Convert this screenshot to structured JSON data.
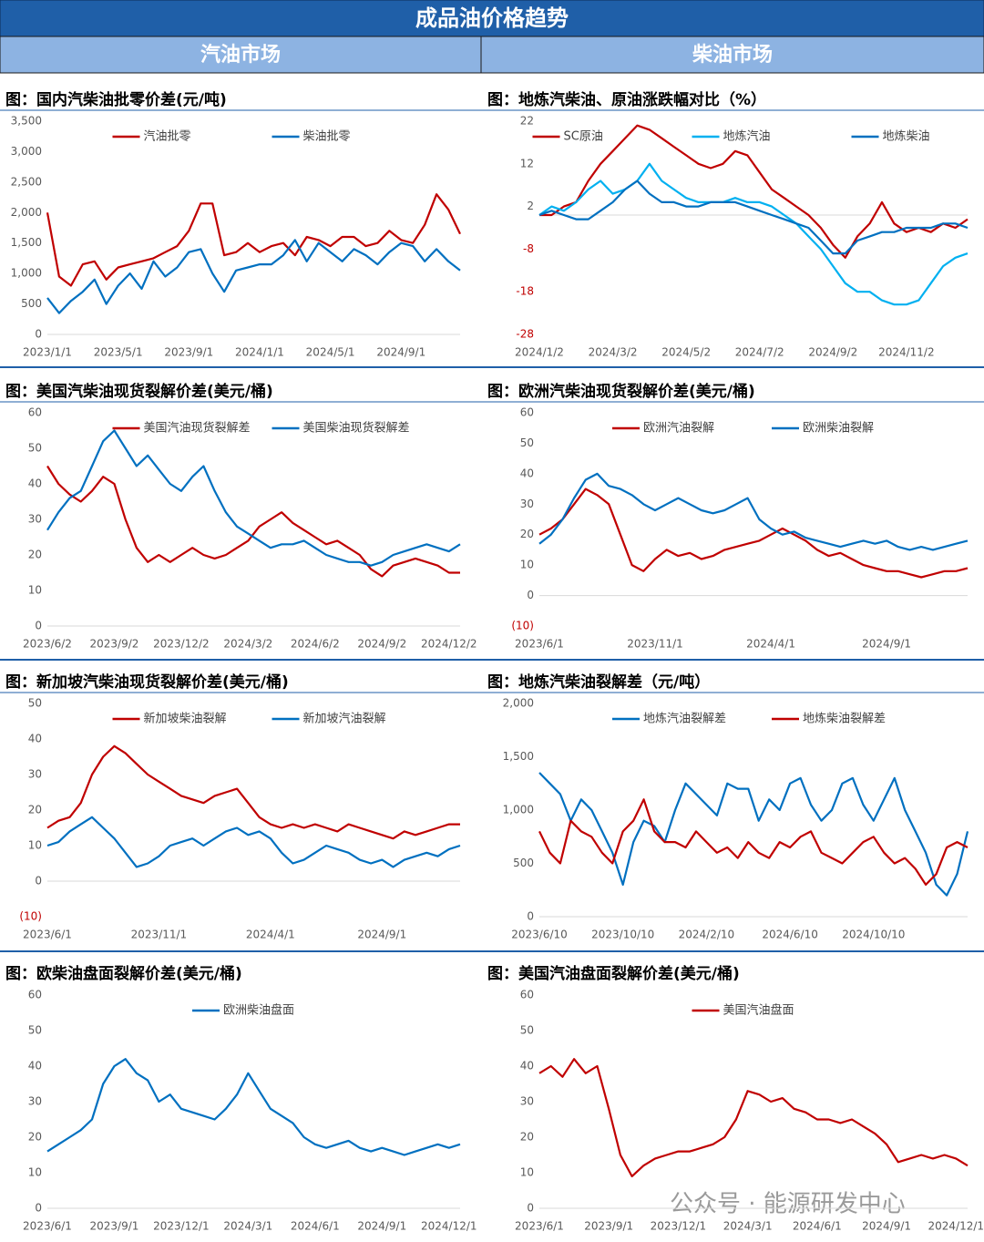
{
  "header": {
    "title": "成品油价格趋势",
    "left_tab": "汽油市场",
    "right_tab": "柴油市场"
  },
  "watermark": "公众号 · 能源研发中心",
  "chart_data": [
    {
      "type": "line",
      "title": "图：国内汽柴油批零价差(元/吨)",
      "categories": [
        "2023/1/1",
        null,
        null,
        null,
        null,
        null,
        "2023/5/1",
        null,
        null,
        null,
        null,
        null,
        "2023/9/1",
        null,
        null,
        null,
        null,
        null,
        "2024/1/1",
        null,
        null,
        null,
        null,
        null,
        "2024/5/1",
        null,
        null,
        null,
        null,
        null,
        "2024/9/1",
        null,
        null,
        null,
        null,
        null
      ],
      "series": [
        {
          "name": "汽油批零",
          "color": "#c00000",
          "values": [
            2000,
            950,
            800,
            1150,
            1200,
            900,
            1100,
            1150,
            1200,
            1250,
            1350,
            1450,
            1700,
            2150,
            2150,
            1300,
            1350,
            1500,
            1350,
            1450,
            1500,
            1300,
            1600,
            1550,
            1450,
            1600,
            1600,
            1450,
            1500,
            1700,
            1550,
            1500,
            1800,
            2300,
            2050,
            1650
          ]
        },
        {
          "name": "柴油批零",
          "color": "#0070c0",
          "values": [
            600,
            350,
            550,
            700,
            900,
            500,
            800,
            1000,
            750,
            1200,
            950,
            1100,
            1350,
            1400,
            1000,
            700,
            1050,
            1100,
            1150,
            1150,
            1300,
            1550,
            1200,
            1500,
            1350,
            1200,
            1400,
            1300,
            1150,
            1350,
            1500,
            1450,
            1200,
            1400,
            1200,
            1050
          ]
        }
      ],
      "ylim": [
        0,
        3500
      ],
      "yticks": [
        0,
        500,
        {
          "value": 1000,
          "label": "1,000"
        },
        {
          "value": 1500,
          "label": "1,500"
        },
        {
          "value": 2000,
          "label": "2,000"
        },
        {
          "value": 2500,
          "label": "2,500"
        },
        {
          "value": 3000,
          "label": "3,000"
        },
        {
          "value": 3500,
          "label": "3,500"
        }
      ],
      "legend": "top"
    },
    {
      "type": "line",
      "title": "图：地炼汽柴油、原油涨跌幅对比（%）",
      "categories": [
        "2024/1/2",
        null,
        null,
        null,
        null,
        null,
        "2024/3/2",
        null,
        null,
        null,
        null,
        null,
        "2024/5/2",
        null,
        null,
        null,
        null,
        null,
        "2024/7/2",
        null,
        null,
        null,
        null,
        null,
        "2024/9/2",
        null,
        null,
        null,
        null,
        null,
        "2024/11/2",
        null,
        null,
        null,
        null,
        null
      ],
      "series": [
        {
          "name": "SC原油",
          "color": "#c00000",
          "values": [
            0,
            0,
            2,
            3,
            8,
            12,
            15,
            18,
            21,
            20,
            18,
            16,
            14,
            12,
            11,
            12,
            15,
            14,
            10,
            6,
            4,
            2,
            0,
            -3,
            -7,
            -10,
            -5,
            -2,
            3,
            -2,
            -4,
            -3,
            -4,
            -2,
            -3,
            -1
          ]
        },
        {
          "name": "地炼汽油",
          "color": "#00b0f0",
          "values": [
            0,
            2,
            1,
            3,
            6,
            8,
            5,
            6,
            8,
            12,
            8,
            6,
            4,
            3,
            3,
            3,
            4,
            3,
            3,
            2,
            0,
            -2,
            -5,
            -8,
            -12,
            -16,
            -18,
            -18,
            -20,
            -21,
            -21,
            -20,
            -16,
            -12,
            -10,
            -9
          ]
        },
        {
          "name": "地炼柴油",
          "color": "#0070c0",
          "values": [
            0,
            1,
            0,
            -1,
            -1,
            1,
            3,
            6,
            8,
            5,
            3,
            3,
            2,
            2,
            3,
            3,
            3,
            2,
            1,
            0,
            -1,
            -2,
            -3,
            -6,
            -9,
            -9,
            -6,
            -5,
            -4,
            -4,
            -3,
            -3,
            -3,
            -2,
            -2,
            -3
          ]
        }
      ],
      "ylim": [
        -28,
        22
      ],
      "yticks": [
        -28,
        -18,
        -8,
        2,
        12,
        22
      ],
      "legend": "top"
    },
    {
      "type": "line",
      "title": "图：美国汽柴油现货裂解价差(美元/桶)",
      "categories": [
        "2023/6/2",
        null,
        null,
        null,
        null,
        null,
        "2023/9/2",
        null,
        null,
        null,
        null,
        null,
        "2023/12/2",
        null,
        null,
        null,
        null,
        null,
        "2024/3/2",
        null,
        null,
        null,
        null,
        null,
        "2024/6/2",
        null,
        null,
        null,
        null,
        null,
        "2024/9/2",
        null,
        null,
        null,
        null,
        null,
        "2024/12/2",
        null
      ],
      "series": [
        {
          "name": "美国汽油现货裂解差",
          "color": "#c00000",
          "values": [
            45,
            40,
            37,
            35,
            38,
            42,
            40,
            30,
            22,
            18,
            20,
            18,
            20,
            22,
            20,
            19,
            20,
            22,
            24,
            28,
            30,
            32,
            29,
            27,
            25,
            23,
            24,
            22,
            20,
            16,
            14,
            17,
            18,
            19,
            18,
            17,
            15,
            15
          ]
        },
        {
          "name": "美国柴油现货裂解差",
          "color": "#0070c0",
          "values": [
            27,
            32,
            36,
            38,
            45,
            52,
            55,
            50,
            45,
            48,
            44,
            40,
            38,
            42,
            45,
            38,
            32,
            28,
            26,
            24,
            22,
            23,
            23,
            24,
            22,
            20,
            19,
            18,
            18,
            17,
            18,
            20,
            21,
            22,
            23,
            22,
            21,
            23
          ]
        }
      ],
      "ylim": [
        0,
        60
      ],
      "yticks": [
        0,
        10,
        20,
        30,
        40,
        50,
        60
      ],
      "legend": "top"
    },
    {
      "type": "line",
      "title": "图：欧洲汽柴油现货裂解价差(美元/桶)",
      "categories": [
        "2023/6/1",
        null,
        null,
        null,
        null,
        null,
        null,
        null,
        null,
        null,
        "2023/11/1",
        null,
        null,
        null,
        null,
        null,
        null,
        null,
        null,
        null,
        "2024/4/1",
        null,
        null,
        null,
        null,
        null,
        null,
        null,
        null,
        null,
        "2024/9/1",
        null,
        null,
        null,
        null,
        null,
        null,
        null
      ],
      "series": [
        {
          "name": "欧洲汽油裂解",
          "color": "#c00000",
          "values": [
            20,
            22,
            25,
            30,
            35,
            33,
            30,
            20,
            10,
            8,
            12,
            15,
            13,
            14,
            12,
            13,
            15,
            16,
            17,
            18,
            20,
            22,
            20,
            18,
            15,
            13,
            14,
            12,
            10,
            9,
            8,
            8,
            7,
            6,
            7,
            8,
            8,
            9
          ]
        },
        {
          "name": "欧洲柴油裂解",
          "color": "#0070c0",
          "values": [
            17,
            20,
            25,
            32,
            38,
            40,
            36,
            35,
            33,
            30,
            28,
            30,
            32,
            30,
            28,
            27,
            28,
            30,
            32,
            25,
            22,
            20,
            21,
            19,
            18,
            17,
            16,
            17,
            18,
            17,
            18,
            16,
            15,
            16,
            15,
            16,
            17,
            18
          ]
        }
      ],
      "ylim": [
        -10,
        60
      ],
      "yticks": [
        {
          "value": -10,
          "label": "(10)"
        },
        0,
        10,
        20,
        30,
        40,
        50,
        60
      ],
      "legend": "top"
    },
    {
      "type": "line",
      "title": "图：新加坡汽柴油现货裂解价差(美元/桶)",
      "categories": [
        "2023/6/1",
        null,
        null,
        null,
        null,
        null,
        null,
        null,
        null,
        null,
        "2023/11/1",
        null,
        null,
        null,
        null,
        null,
        null,
        null,
        null,
        null,
        "2024/4/1",
        null,
        null,
        null,
        null,
        null,
        null,
        null,
        null,
        null,
        "2024/9/1",
        null,
        null,
        null,
        null,
        null,
        null,
        null
      ],
      "series": [
        {
          "name": "新加坡柴油裂解",
          "color": "#c00000",
          "values": [
            15,
            17,
            18,
            22,
            30,
            35,
            38,
            36,
            33,
            30,
            28,
            26,
            24,
            23,
            22,
            24,
            25,
            26,
            22,
            18,
            16,
            15,
            16,
            15,
            16,
            15,
            14,
            16,
            15,
            14,
            13,
            12,
            14,
            13,
            14,
            15,
            16,
            16
          ]
        },
        {
          "name": "新加坡汽油裂解",
          "color": "#0070c0",
          "values": [
            10,
            11,
            14,
            16,
            18,
            15,
            12,
            8,
            4,
            5,
            7,
            10,
            11,
            12,
            10,
            12,
            14,
            15,
            13,
            14,
            12,
            8,
            5,
            6,
            8,
            10,
            9,
            8,
            6,
            5,
            6,
            4,
            6,
            7,
            8,
            7,
            9,
            10
          ]
        }
      ],
      "ylim": [
        -10,
        50
      ],
      "yticks": [
        {
          "value": -10,
          "label": "(10)"
        },
        0,
        10,
        20,
        30,
        40,
        50
      ],
      "legend": "top"
    },
    {
      "type": "line",
      "title": "图：地炼汽柴油裂解差（元/吨）",
      "categories": [
        "2023/6/10",
        null,
        null,
        null,
        null,
        null,
        null,
        null,
        "2023/10/10",
        null,
        null,
        null,
        null,
        null,
        null,
        null,
        "2024/2/10",
        null,
        null,
        null,
        null,
        null,
        null,
        null,
        "2024/6/10",
        null,
        null,
        null,
        null,
        null,
        null,
        null,
        "2024/10/10",
        null,
        null,
        null,
        null,
        null,
        null,
        null,
        null,
        null
      ],
      "series": [
        {
          "name": "地炼汽油裂解差",
          "color": "#0070c0",
          "values": [
            1350,
            1250,
            1150,
            900,
            1100,
            1000,
            800,
            600,
            300,
            700,
            900,
            850,
            700,
            1000,
            1250,
            1150,
            1050,
            950,
            1250,
            1200,
            1200,
            900,
            1100,
            1000,
            1250,
            1300,
            1050,
            900,
            1000,
            1250,
            1300,
            1050,
            900,
            1100,
            1300,
            1000,
            800,
            600,
            300,
            200,
            400,
            800
          ]
        },
        {
          "name": "地炼柴油裂解差",
          "color": "#c00000",
          "values": [
            800,
            600,
            500,
            900,
            800,
            750,
            600,
            500,
            800,
            900,
            1100,
            800,
            700,
            700,
            650,
            800,
            700,
            600,
            650,
            550,
            700,
            600,
            550,
            700,
            650,
            750,
            800,
            600,
            550,
            500,
            600,
            700,
            750,
            600,
            500,
            550,
            450,
            300,
            400,
            650,
            700,
            650
          ]
        }
      ],
      "ylim": [
        0,
        2000
      ],
      "yticks": [
        0,
        500,
        {
          "value": 1000,
          "label": "1,000"
        },
        {
          "value": 1500,
          "label": "1,500"
        },
        {
          "value": 2000,
          "label": "2,000"
        }
      ],
      "legend": "top"
    },
    {
      "type": "line",
      "title": "图：欧柴油盘面裂解价差(美元/桶)",
      "categories": [
        "2023/6/1",
        null,
        null,
        null,
        null,
        null,
        "2023/9/1",
        null,
        null,
        null,
        null,
        null,
        "2023/12/1",
        null,
        null,
        null,
        null,
        null,
        "2024/3/1",
        null,
        null,
        null,
        null,
        null,
        "2024/6/1",
        null,
        null,
        null,
        null,
        null,
        "2024/9/1",
        null,
        null,
        null,
        null,
        null,
        "2024/12/1",
        null
      ],
      "series": [
        {
          "name": "欧洲柴油盘面",
          "color": "#0070c0",
          "values": [
            16,
            18,
            20,
            22,
            25,
            35,
            40,
            42,
            38,
            36,
            30,
            32,
            28,
            27,
            26,
            25,
            28,
            32,
            38,
            33,
            28,
            26,
            24,
            20,
            18,
            17,
            18,
            19,
            17,
            16,
            17,
            16,
            15,
            16,
            17,
            18,
            17,
            18
          ]
        }
      ],
      "ylim": [
        0,
        60
      ],
      "yticks": [
        0,
        10,
        20,
        30,
        40,
        50,
        60
      ],
      "legend": "top"
    },
    {
      "type": "line",
      "title": "图：美国汽油盘面裂解价差(美元/桶)",
      "categories": [
        "2023/6/1",
        null,
        null,
        null,
        null,
        null,
        "2023/9/1",
        null,
        null,
        null,
        null,
        null,
        "2023/12/1",
        null,
        null,
        null,
        null,
        null,
        "2024/3/1",
        null,
        null,
        null,
        null,
        null,
        "2024/6/1",
        null,
        null,
        null,
        null,
        null,
        "2024/9/1",
        null,
        null,
        null,
        null,
        null,
        "2024/12/1",
        null
      ],
      "series": [
        {
          "name": "美国汽油盘面",
          "color": "#c00000",
          "values": [
            38,
            40,
            37,
            42,
            38,
            40,
            28,
            15,
            9,
            12,
            14,
            15,
            16,
            16,
            17,
            18,
            20,
            25,
            33,
            32,
            30,
            31,
            28,
            27,
            25,
            25,
            24,
            25,
            23,
            21,
            18,
            13,
            14,
            15,
            14,
            15,
            14,
            12
          ]
        }
      ],
      "ylim": [
        0,
        60
      ],
      "yticks": [
        0,
        10,
        20,
        30,
        40,
        50,
        60
      ],
      "legend": "top"
    }
  ]
}
